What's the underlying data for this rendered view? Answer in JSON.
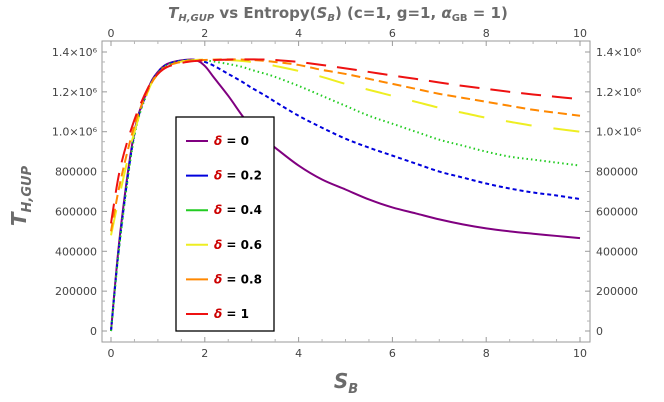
{
  "chart_data": {
    "type": "line",
    "title": "T_H,GUP vs Entropy(S_B) (c=1, g=1, α_GB = 1)",
    "title_parts": {
      "main": "T",
      "main_sub": "H,GUP",
      "vs": " vs Entropy(",
      "s": "S",
      "s_sub": "B",
      "params": ") (c=1, g=1, ",
      "alpha": "α",
      "alpha_sub": "GB",
      "alpha_val": " = 1)"
    },
    "xlabel": "S_B",
    "xlabel_parts": {
      "main": "S",
      "sub": "B"
    },
    "ylabel": "T_H,GUP",
    "ylabel_parts": {
      "main": "T",
      "sub": "H,GUP"
    },
    "xlim": [
      0,
      10
    ],
    "ylim": [
      0,
      1400000
    ],
    "x_ticks": [
      "0",
      "2",
      "4",
      "6",
      "8",
      "10"
    ],
    "x_tick_values": [
      0,
      2,
      4,
      6,
      8,
      10
    ],
    "y_ticks": [
      "0",
      "200000",
      "400000",
      "600000",
      "800000",
      "1.0×10⁶",
      "1.2×10⁶",
      "1.4×10⁶"
    ],
    "y_tick_values": [
      0,
      200000,
      400000,
      600000,
      800000,
      1000000,
      1200000,
      1400000
    ],
    "legend_position": "left-inside",
    "delta_symbol": "δ",
    "x": [
      0,
      0.2,
      0.5,
      0.8,
      1.0,
      1.2,
      1.5,
      1.8,
      2.0,
      2.2,
      2.5,
      2.8,
      3.0,
      3.3,
      3.5,
      4.0,
      4.5,
      5.0,
      5.5,
      6.0,
      6.5,
      7.0,
      7.5,
      8.0,
      8.5,
      9.0,
      9.5,
      10.0
    ],
    "series": [
      {
        "name": "δ = 0",
        "delta": "0",
        "color": "#800080",
        "dash": "solid",
        "values": [
          0,
          500000,
          1000000,
          1220000,
          1300000,
          1340000,
          1358000,
          1360000,
          1330000,
          1270000,
          1180000,
          1080000,
          1020000,
          960000,
          920000,
          830000,
          760000,
          710000,
          660000,
          620000,
          590000,
          560000,
          535000,
          515000,
          500000,
          488000,
          477000,
          466000
        ]
      },
      {
        "name": "δ = 0.2",
        "delta": "0.2",
        "color": "#0000dd",
        "dash": "short",
        "values": [
          0,
          480000,
          990000,
          1215000,
          1298000,
          1338000,
          1357000,
          1360000,
          1350000,
          1330000,
          1290000,
          1250000,
          1220000,
          1180000,
          1150000,
          1080000,
          1020000,
          965000,
          920000,
          880000,
          840000,
          800000,
          770000,
          740000,
          715000,
          695000,
          680000,
          662000
        ]
      },
      {
        "name": "δ = 0.4",
        "delta": "0.4",
        "color": "#22cc22",
        "dash": "dotted",
        "values": [
          0,
          470000,
          980000,
          1210000,
          1295000,
          1335000,
          1355000,
          1360000,
          1358000,
          1352000,
          1340000,
          1325000,
          1310000,
          1290000,
          1275000,
          1230000,
          1180000,
          1130000,
          1080000,
          1040000,
          1000000,
          960000,
          930000,
          900000,
          875000,
          860000,
          845000,
          830000
        ]
      },
      {
        "name": "δ = 0.6",
        "delta": "0.6",
        "color": "#eeee22",
        "dash": "long",
        "values": [
          480000,
          700000,
          1000000,
          1210000,
          1290000,
          1330000,
          1352000,
          1360000,
          1362000,
          1362000,
          1360000,
          1355000,
          1350000,
          1340000,
          1330000,
          1305000,
          1275000,
          1240000,
          1210000,
          1180000,
          1150000,
          1120000,
          1095000,
          1070000,
          1050000,
          1030000,
          1015000,
          1000000
        ]
      },
      {
        "name": "δ = 0.8",
        "delta": "0.8",
        "color": "#ff8800",
        "dash": "medium",
        "values": [
          500000,
          750000,
          1030000,
          1215000,
          1290000,
          1330000,
          1350000,
          1358000,
          1360000,
          1362000,
          1363000,
          1362000,
          1360000,
          1355000,
          1350000,
          1335000,
          1310000,
          1290000,
          1265000,
          1240000,
          1215000,
          1190000,
          1170000,
          1150000,
          1130000,
          1110000,
          1095000,
          1080000
        ]
      },
      {
        "name": "δ = 1",
        "delta": "1",
        "color": "#ee1111",
        "dash": "longgap",
        "values": [
          540000,
          820000,
          1060000,
          1225000,
          1290000,
          1325000,
          1345000,
          1355000,
          1358000,
          1360000,
          1362000,
          1363000,
          1363000,
          1362000,
          1360000,
          1350000,
          1335000,
          1318000,
          1300000,
          1282000,
          1265000,
          1247000,
          1230000,
          1215000,
          1200000,
          1187000,
          1175000,
          1163000
        ]
      }
    ]
  }
}
